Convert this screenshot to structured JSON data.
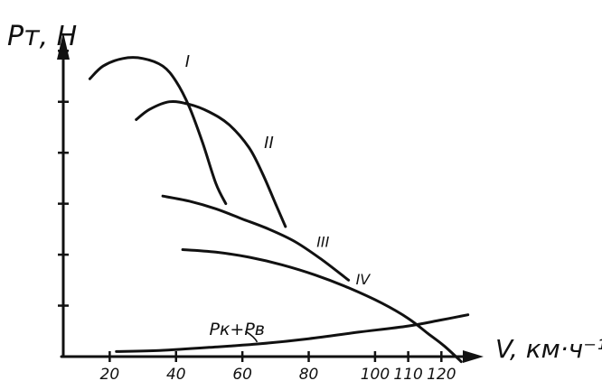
{
  "chart_data": {
    "type": "line",
    "ylabel": "Pт, Н",
    "xlabel": "V, км·ч⁻¹",
    "xlim": [
      6,
      130
    ],
    "ylim": [
      0,
      6.2
    ],
    "x_ticks": [
      20,
      40,
      60,
      80,
      100,
      110,
      120
    ],
    "x_tick_labels": [
      "20",
      "40",
      "60",
      "80",
      "100",
      "110",
      "120"
    ],
    "y_tick_count": 6,
    "grid": false,
    "legend": "none",
    "series": [
      {
        "name": "I",
        "x": [
          14,
          18,
          24,
          30,
          36,
          40,
          44,
          48,
          52,
          55
        ],
        "y": [
          5.45,
          5.7,
          5.85,
          5.85,
          5.7,
          5.4,
          4.9,
          4.2,
          3.4,
          3.0
        ]
      },
      {
        "name": "II",
        "x": [
          28,
          32,
          38,
          44,
          50,
          56,
          62,
          66,
          70,
          73
        ],
        "y": [
          4.65,
          4.85,
          5.0,
          4.95,
          4.8,
          4.55,
          4.1,
          3.6,
          3.0,
          2.55
        ]
      },
      {
        "name": "III",
        "x": [
          36,
          44,
          52,
          60,
          68,
          76,
          84,
          92
        ],
        "y": [
          3.15,
          3.05,
          2.9,
          2.7,
          2.5,
          2.25,
          1.9,
          1.5
        ]
      },
      {
        "name": "IV",
        "x": [
          42,
          52,
          62,
          72,
          82,
          92,
          102,
          110,
          116,
          121,
          126
        ],
        "y": [
          2.1,
          2.05,
          1.95,
          1.8,
          1.6,
          1.35,
          1.05,
          0.75,
          0.45,
          0.2,
          -0.1
        ]
      },
      {
        "name": "Pк+Pв",
        "x": [
          22,
          35,
          50,
          65,
          80,
          95,
          110,
          120,
          128
        ],
        "y": [
          0.1,
          0.12,
          0.18,
          0.25,
          0.35,
          0.48,
          0.6,
          0.72,
          0.82
        ]
      }
    ]
  }
}
